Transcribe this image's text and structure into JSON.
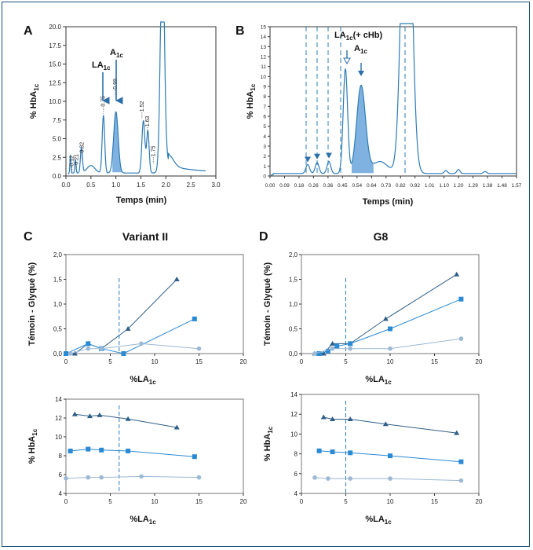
{
  "colors": {
    "trace": "#2c7bb6",
    "fill": "#7fb2e0",
    "dark": "#2f5e88",
    "mid": "#2a8ad4",
    "light": "#9bb8d4"
  },
  "chart_data": [
    {
      "panel": "A",
      "type": "line",
      "xlabel": "Temps (min)",
      "xlim": [
        0,
        3.0
      ],
      "xticks": [
        "0.0",
        "0.5",
        "1.0",
        "1.5",
        "2.0",
        "2.5",
        "3.0"
      ],
      "yticks": [
        "0.0",
        "2.5",
        "5.0",
        "7.5",
        "10.0",
        "12.5",
        "15.0",
        "17.5",
        "20.0"
      ],
      "ylim": [
        0,
        20
      ],
      "peaks": [
        {
          "label": "LA1c",
          "rt": "0.75",
          "x": 0.75
        },
        {
          "label": "A1c",
          "rt": "0.99",
          "x": 0.99
        }
      ],
      "retention_labels": [
        "0.12",
        "0.21",
        "0.32",
        "0.75",
        "0.99",
        "1.52",
        "1.63",
        "1.75"
      ],
      "label_la": "LA",
      "label_a": "A",
      "sub_1c": "1c",
      "ylabel_main": "% HbA",
      "ylabel_sub": "1c"
    },
    {
      "panel": "B",
      "type": "line",
      "xlabel": "Temps (min)",
      "xlim": [
        0,
        1.57
      ],
      "xticks": [
        "0.00",
        "0.09",
        "0.18",
        "0.26",
        "0.36",
        "0.45",
        "0.54",
        "0.64",
        "0.73",
        "0.82",
        "0.92",
        "1.01",
        "1.10",
        "1.20",
        "1.29",
        "1.38",
        "1.48",
        "1.57"
      ],
      "yticks": [
        "0",
        "1",
        "2",
        "3",
        "4",
        "5",
        "6",
        "7",
        "8",
        "9",
        "10",
        "11",
        "12",
        "13",
        "14",
        "15"
      ],
      "ylim": [
        0,
        15
      ],
      "peaks": [
        {
          "label": "LA1c (+ cHb)",
          "x": 0.49
        },
        {
          "label": "A1c",
          "x": 0.58
        }
      ],
      "label_la": "LA",
      "label_la_suffix": "(+ cHb)",
      "label_a": "A",
      "sub_1c": "1c",
      "ylabel_main": "% HbA",
      "ylabel_sub": "1c"
    },
    {
      "panel": "C",
      "type": "line",
      "title": "Variant II",
      "top": {
        "ylabel": "Témoin - Glyqué (%)",
        "xlim": [
          0,
          20
        ],
        "ylim": [
          0,
          2.0
        ],
        "xticks": [
          "0",
          "5",
          "10",
          "15",
          "20"
        ],
        "yticks": [
          "0,0",
          "0,5",
          "1,0",
          "1,5",
          "2,0"
        ],
        "xlabel_main": "%LA",
        "xlabel_sub": "1c",
        "vline": 6.0,
        "series": [
          {
            "marker": "triangle",
            "points": [
              [
                0,
                0
              ],
              [
                1,
                0
              ],
              [
                2.5,
                0.2
              ],
              [
                4,
                0.1
              ],
              [
                7,
                0.5
              ],
              [
                12.5,
                1.5
              ]
            ]
          },
          {
            "marker": "square",
            "points": [
              [
                0,
                0
              ],
              [
                2.5,
                0.2
              ],
              [
                4,
                0.1
              ],
              [
                6.5,
                0
              ],
              [
                14.5,
                0.7
              ]
            ]
          },
          {
            "marker": "circle",
            "points": [
              [
                0.5,
                0
              ],
              [
                2.5,
                0.1
              ],
              [
                4,
                0.1
              ],
              [
                8.5,
                0.2
              ],
              [
                15,
                0.1
              ]
            ]
          }
        ]
      },
      "bottom": {
        "ylabel_main": "% HbA",
        "ylabel_sub": "1c",
        "xlim": [
          0,
          20
        ],
        "ylim": [
          4,
          14
        ],
        "xticks": [
          "0",
          "5",
          "10",
          "15",
          "20"
        ],
        "yticks": [
          "4",
          "6",
          "8",
          "10",
          "12",
          "14"
        ],
        "xlabel_main": "%LA",
        "xlabel_sub": "1c",
        "vline": 6.0,
        "series": [
          {
            "marker": "triangle",
            "points": [
              [
                1,
                12.4
              ],
              [
                2.7,
                12.2
              ],
              [
                3.8,
                12.3
              ],
              [
                7,
                11.9
              ],
              [
                12.5,
                11.0
              ]
            ]
          },
          {
            "marker": "square",
            "points": [
              [
                0.5,
                8.5
              ],
              [
                2.5,
                8.7
              ],
              [
                4,
                8.6
              ],
              [
                7,
                8.5
              ],
              [
                14.5,
                7.9
              ]
            ]
          },
          {
            "marker": "circle",
            "points": [
              [
                0,
                5.6
              ],
              [
                2.5,
                5.7
              ],
              [
                4,
                5.7
              ],
              [
                8.5,
                5.8
              ],
              [
                15,
                5.7
              ]
            ]
          }
        ]
      }
    },
    {
      "panel": "D",
      "type": "line",
      "title": "G8",
      "top": {
        "ylabel": "Témoin - Glyqué (%)",
        "xlim": [
          0,
          20
        ],
        "ylim": [
          0,
          2.0
        ],
        "xticks": [
          "0",
          "5",
          "10",
          "15",
          "20"
        ],
        "yticks": [
          "0,0",
          "0,5",
          "1,0",
          "1,5",
          "2,0"
        ],
        "xlabel_main": "%LA",
        "xlabel_sub": "1c",
        "vline": 5.0,
        "series": [
          {
            "marker": "triangle",
            "points": [
              [
                1.5,
                0
              ],
              [
                2.5,
                0
              ],
              [
                3.5,
                0.2
              ],
              [
                5.5,
                0.2
              ],
              [
                9.5,
                0.7
              ],
              [
                17.5,
                1.6
              ]
            ]
          },
          {
            "marker": "square",
            "points": [
              [
                2,
                0
              ],
              [
                3,
                0.05
              ],
              [
                4,
                0.15
              ],
              [
                5.5,
                0.2
              ],
              [
                10,
                0.5
              ],
              [
                18,
                1.1
              ]
            ]
          },
          {
            "marker": "circle",
            "points": [
              [
                1.5,
                0
              ],
              [
                3.5,
                0.1
              ],
              [
                5.5,
                0.1
              ],
              [
                10,
                0.1
              ],
              [
                18,
                0.3
              ]
            ]
          }
        ]
      },
      "bottom": {
        "ylabel_main": "% HbA",
        "ylabel_sub": "1c",
        "xlim": [
          0,
          20
        ],
        "ylim": [
          4,
          14
        ],
        "xticks": [
          "0",
          "5",
          "10",
          "15",
          "20"
        ],
        "yticks": [
          "4",
          "6",
          "8",
          "10",
          "12",
          "14"
        ],
        "xlabel_main": "%LA",
        "xlabel_sub": "1c",
        "vline": 5.0,
        "series": [
          {
            "marker": "triangle",
            "points": [
              [
                2.5,
                11.7
              ],
              [
                3.5,
                11.5
              ],
              [
                5.5,
                11.5
              ],
              [
                9.5,
                11.0
              ],
              [
                17.5,
                10.1
              ]
            ]
          },
          {
            "marker": "square",
            "points": [
              [
                2,
                8.3
              ],
              [
                3.5,
                8.2
              ],
              [
                5.5,
                8.1
              ],
              [
                10,
                7.8
              ],
              [
                18,
                7.2
              ]
            ]
          },
          {
            "marker": "circle",
            "points": [
              [
                1.5,
                5.6
              ],
              [
                3,
                5.5
              ],
              [
                5.5,
                5.5
              ],
              [
                10,
                5.5
              ],
              [
                18,
                5.3
              ]
            ]
          }
        ]
      }
    }
  ]
}
